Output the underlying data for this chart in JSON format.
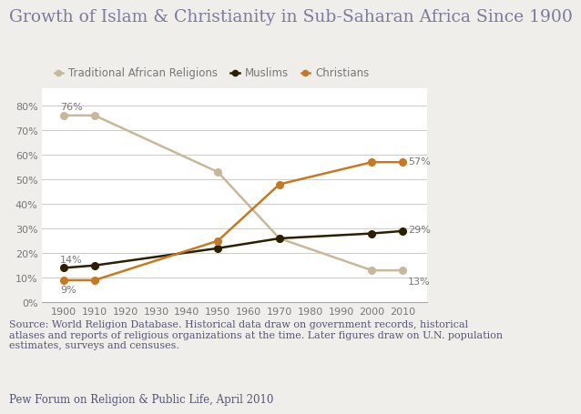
{
  "title": "Growth of Islam & Christianity in Sub-Saharan Africa Since 1900",
  "years": [
    1900,
    1910,
    1950,
    1970,
    2000,
    2010
  ],
  "traditional": [
    0.76,
    0.76,
    0.53,
    0.26,
    0.13,
    0.13
  ],
  "muslims": [
    0.14,
    0.15,
    0.22,
    0.26,
    0.28,
    0.29
  ],
  "christians": [
    0.09,
    0.09,
    0.25,
    0.48,
    0.57,
    0.57
  ],
  "traditional_color": "#c8b89a",
  "muslims_color": "#2b1f00",
  "christians_color": "#c8781e",
  "background_color": "#f0eeea",
  "chart_bg_color": "#ffffff",
  "annotations_left_traditional": "76%",
  "annotations_left_muslims": "14%",
  "annotations_left_christians": "9%",
  "annotations_right_traditional": "13%",
  "annotations_right_muslims": "29%",
  "annotations_right_christians": "57%",
  "source_text": "Source: World Religion Database. Historical data draw on government records, historical\natlases and reports of religious organizations at the time. Later figures draw on U.N. population\nestimates, surveys and censuses.",
  "footer_text": "Pew Forum on Religion & Public Life, April 2010",
  "ylabel_ticks": [
    0.0,
    0.1,
    0.2,
    0.3,
    0.4,
    0.5,
    0.6,
    0.7,
    0.8
  ],
  "xticks": [
    1900,
    1910,
    1920,
    1930,
    1940,
    1950,
    1960,
    1970,
    1980,
    1990,
    2000,
    2010
  ],
  "ylim": [
    0,
    0.87
  ],
  "xlim": [
    1893,
    2018
  ],
  "title_color": "#7b7b9b",
  "text_color": "#555577",
  "tick_color": "#777777",
  "grid_color": "#cccccc",
  "spine_color": "#aaaaaa",
  "legend_labels": [
    "Traditional African Religions",
    "Muslims",
    "Christians"
  ],
  "title_fontsize": 13.5,
  "legend_fontsize": 8.5,
  "tick_fontsize": 8,
  "annot_fontsize": 8,
  "source_fontsize": 8,
  "footer_fontsize": 8.5
}
